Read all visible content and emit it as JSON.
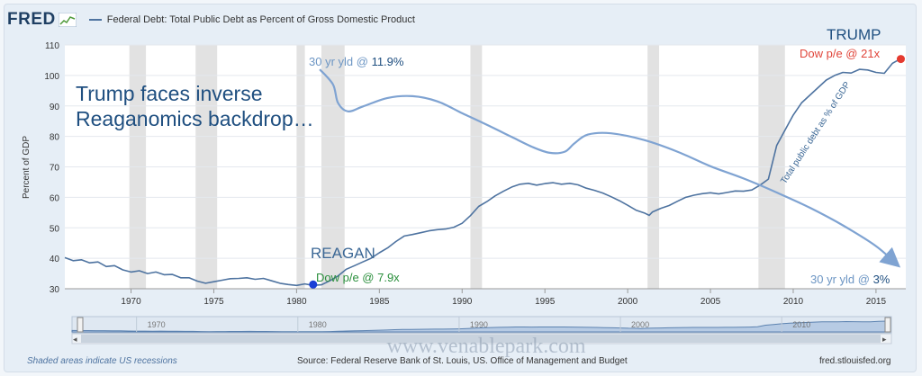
{
  "header": {
    "logo": "FRED",
    "title": "Federal Debt: Total Public Debt as Percent of Gross Domestic Product"
  },
  "footer": {
    "recessions_note": "Shaded areas indicate US recessions",
    "source": "Source: Federal Reserve Bank of St. Louis, US. Office of Management and Budget",
    "site": "fred.stlouisfed.org"
  },
  "watermark": "www.venablepark.com",
  "chart_data": {
    "type": "line",
    "title": "Federal Debt: Total Public Debt as Percent of Gross Domestic Product",
    "ylabel": "Percent of GDP",
    "xlim": [
      1966,
      2016.8
    ],
    "ylim": [
      30,
      110
    ],
    "x_ticks": [
      1970,
      1975,
      1980,
      1985,
      1990,
      1995,
      2000,
      2005,
      2010,
      2015
    ],
    "y_ticks": [
      30,
      40,
      50,
      60,
      70,
      80,
      90,
      100,
      110
    ],
    "grid": true,
    "recessions": [
      [
        1969.9,
        1970.9
      ],
      [
        1973.9,
        1975.2
      ],
      [
        1980.0,
        1980.5
      ],
      [
        1981.5,
        1982.9
      ],
      [
        1990.5,
        1991.2
      ],
      [
        2001.2,
        2001.9
      ],
      [
        2007.9,
        2009.5
      ]
    ],
    "series": [
      {
        "name": "Federal Debt: Total Public Debt as Percent of Gross Domestic Product",
        "color": "#4e73a0",
        "points": [
          [
            1966.0,
            40.2
          ],
          [
            1966.5,
            39.2
          ],
          [
            1967.0,
            39.5
          ],
          [
            1967.5,
            38.5
          ],
          [
            1968.0,
            38.8
          ],
          [
            1968.5,
            37.3
          ],
          [
            1969.0,
            37.6
          ],
          [
            1969.5,
            36.2
          ],
          [
            1970.0,
            35.5
          ],
          [
            1970.5,
            35.9
          ],
          [
            1971.0,
            35.0
          ],
          [
            1971.5,
            35.5
          ],
          [
            1972.0,
            34.6
          ],
          [
            1972.5,
            34.7
          ],
          [
            1973.0,
            33.6
          ],
          [
            1973.5,
            33.6
          ],
          [
            1974.0,
            32.5
          ],
          [
            1974.5,
            31.8
          ],
          [
            1975.0,
            32.3
          ],
          [
            1975.5,
            32.8
          ],
          [
            1976.0,
            33.3
          ],
          [
            1976.5,
            33.4
          ],
          [
            1977.0,
            33.6
          ],
          [
            1977.5,
            33.1
          ],
          [
            1978.0,
            33.4
          ],
          [
            1978.5,
            32.6
          ],
          [
            1979.0,
            31.8
          ],
          [
            1979.5,
            31.4
          ],
          [
            1980.0,
            31.1
          ],
          [
            1980.5,
            31.6
          ],
          [
            1981.0,
            31.1
          ],
          [
            1981.5,
            31.3
          ],
          [
            1982.0,
            32.6
          ],
          [
            1982.5,
            34.2
          ],
          [
            1983.0,
            36.4
          ],
          [
            1983.5,
            37.6
          ],
          [
            1984.0,
            38.8
          ],
          [
            1984.5,
            40.0
          ],
          [
            1985.0,
            41.8
          ],
          [
            1985.5,
            43.4
          ],
          [
            1986.0,
            45.5
          ],
          [
            1986.5,
            47.3
          ],
          [
            1987.0,
            47.8
          ],
          [
            1987.5,
            48.4
          ],
          [
            1988.0,
            49.0
          ],
          [
            1988.5,
            49.4
          ],
          [
            1989.0,
            49.6
          ],
          [
            1989.5,
            50.2
          ],
          [
            1990.0,
            51.5
          ],
          [
            1990.5,
            54.0
          ],
          [
            1991.0,
            57.0
          ],
          [
            1991.5,
            58.6
          ],
          [
            1992.0,
            60.5
          ],
          [
            1992.5,
            62.0
          ],
          [
            1993.0,
            63.4
          ],
          [
            1993.5,
            64.3
          ],
          [
            1994.0,
            64.6
          ],
          [
            1994.5,
            64.0
          ],
          [
            1995.0,
            64.5
          ],
          [
            1995.5,
            64.8
          ],
          [
            1996.0,
            64.3
          ],
          [
            1996.5,
            64.6
          ],
          [
            1997.0,
            64.1
          ],
          [
            1997.5,
            63.0
          ],
          [
            1998.0,
            62.3
          ],
          [
            1998.5,
            61.4
          ],
          [
            1999.0,
            60.2
          ],
          [
            1999.5,
            58.9
          ],
          [
            2000.0,
            57.4
          ],
          [
            2000.5,
            55.8
          ],
          [
            2001.0,
            54.9
          ],
          [
            2001.3,
            54.1
          ],
          [
            2001.5,
            55.2
          ],
          [
            2002.0,
            56.4
          ],
          [
            2002.5,
            57.3
          ],
          [
            2003.0,
            58.7
          ],
          [
            2003.5,
            60.0
          ],
          [
            2004.0,
            60.7
          ],
          [
            2004.5,
            61.2
          ],
          [
            2005.0,
            61.5
          ],
          [
            2005.5,
            61.1
          ],
          [
            2006.0,
            61.6
          ],
          [
            2006.5,
            62.1
          ],
          [
            2007.0,
            62.0
          ],
          [
            2007.5,
            62.4
          ],
          [
            2008.0,
            64.0
          ],
          [
            2008.5,
            66.0
          ],
          [
            2009.0,
            77.0
          ],
          [
            2009.5,
            82.0
          ],
          [
            2010.0,
            87.0
          ],
          [
            2010.5,
            91.0
          ],
          [
            2011.0,
            93.5
          ],
          [
            2011.5,
            96.0
          ],
          [
            2012.0,
            98.5
          ],
          [
            2012.5,
            100.0
          ],
          [
            2013.0,
            101.0
          ],
          [
            2013.5,
            100.8
          ],
          [
            2014.0,
            102.0
          ],
          [
            2014.5,
            101.8
          ],
          [
            2015.0,
            101.0
          ],
          [
            2015.5,
            100.7
          ],
          [
            2016.0,
            104.0
          ],
          [
            2016.5,
            105.5
          ]
        ]
      }
    ],
    "yield_curve": {
      "color": "#7fa3d2",
      "points": [
        [
          1981.4,
          102
        ],
        [
          1982.2,
          97
        ],
        [
          1982.5,
          91
        ],
        [
          1983.1,
          88.2
        ],
        [
          1984.0,
          89.8
        ],
        [
          1985.5,
          92.6
        ],
        [
          1987.0,
          93.2
        ],
        [
          1988.5,
          91.5
        ],
        [
          1990.0,
          87.6
        ],
        [
          1991.5,
          83.8
        ],
        [
          1993.0,
          79.8
        ],
        [
          1994.3,
          76.4
        ],
        [
          1995.3,
          74.6
        ],
        [
          1996.2,
          75.0
        ],
        [
          1996.8,
          77.8
        ],
        [
          1997.6,
          80.6
        ],
        [
          1999.0,
          81.0
        ],
        [
          2001.0,
          78.8
        ],
        [
          2003.0,
          75.0
        ],
        [
          2005.0,
          70.2
        ],
        [
          2007.0,
          66.2
        ],
        [
          2009.0,
          61.6
        ],
        [
          2011.0,
          56.6
        ],
        [
          2013.0,
          50.8
        ],
        [
          2015.0,
          44.0
        ],
        [
          2016.3,
          37.8
        ]
      ]
    },
    "markers": [
      {
        "label": "REAGAN",
        "x": 1981.0,
        "y": 31.4,
        "color": "#1a3fd6"
      },
      {
        "label": "TRUMP",
        "x": 2016.5,
        "y": 105.4,
        "color": "#e53a2f"
      }
    ],
    "annotations": {
      "headline_line1": "Trump faces inverse",
      "headline_line2": "Reaganomics backdrop…",
      "reagan_label": "REAGAN",
      "reagan_dow": "Dow p/e @ 7.9x",
      "trump_label": "TRUMP",
      "trump_dow": "Dow p/e @ 21x",
      "yield_1981_prefix": "30 yr yld @ ",
      "yield_1981_value": "11.9%",
      "yield_2016_prefix": "30 yr yld @ ",
      "yield_2016_value": "3%",
      "debt_label": "Total public debt as % of GDP"
    },
    "navigator": {
      "ticks": [
        1970,
        1980,
        1990,
        2000,
        2010
      ]
    }
  }
}
